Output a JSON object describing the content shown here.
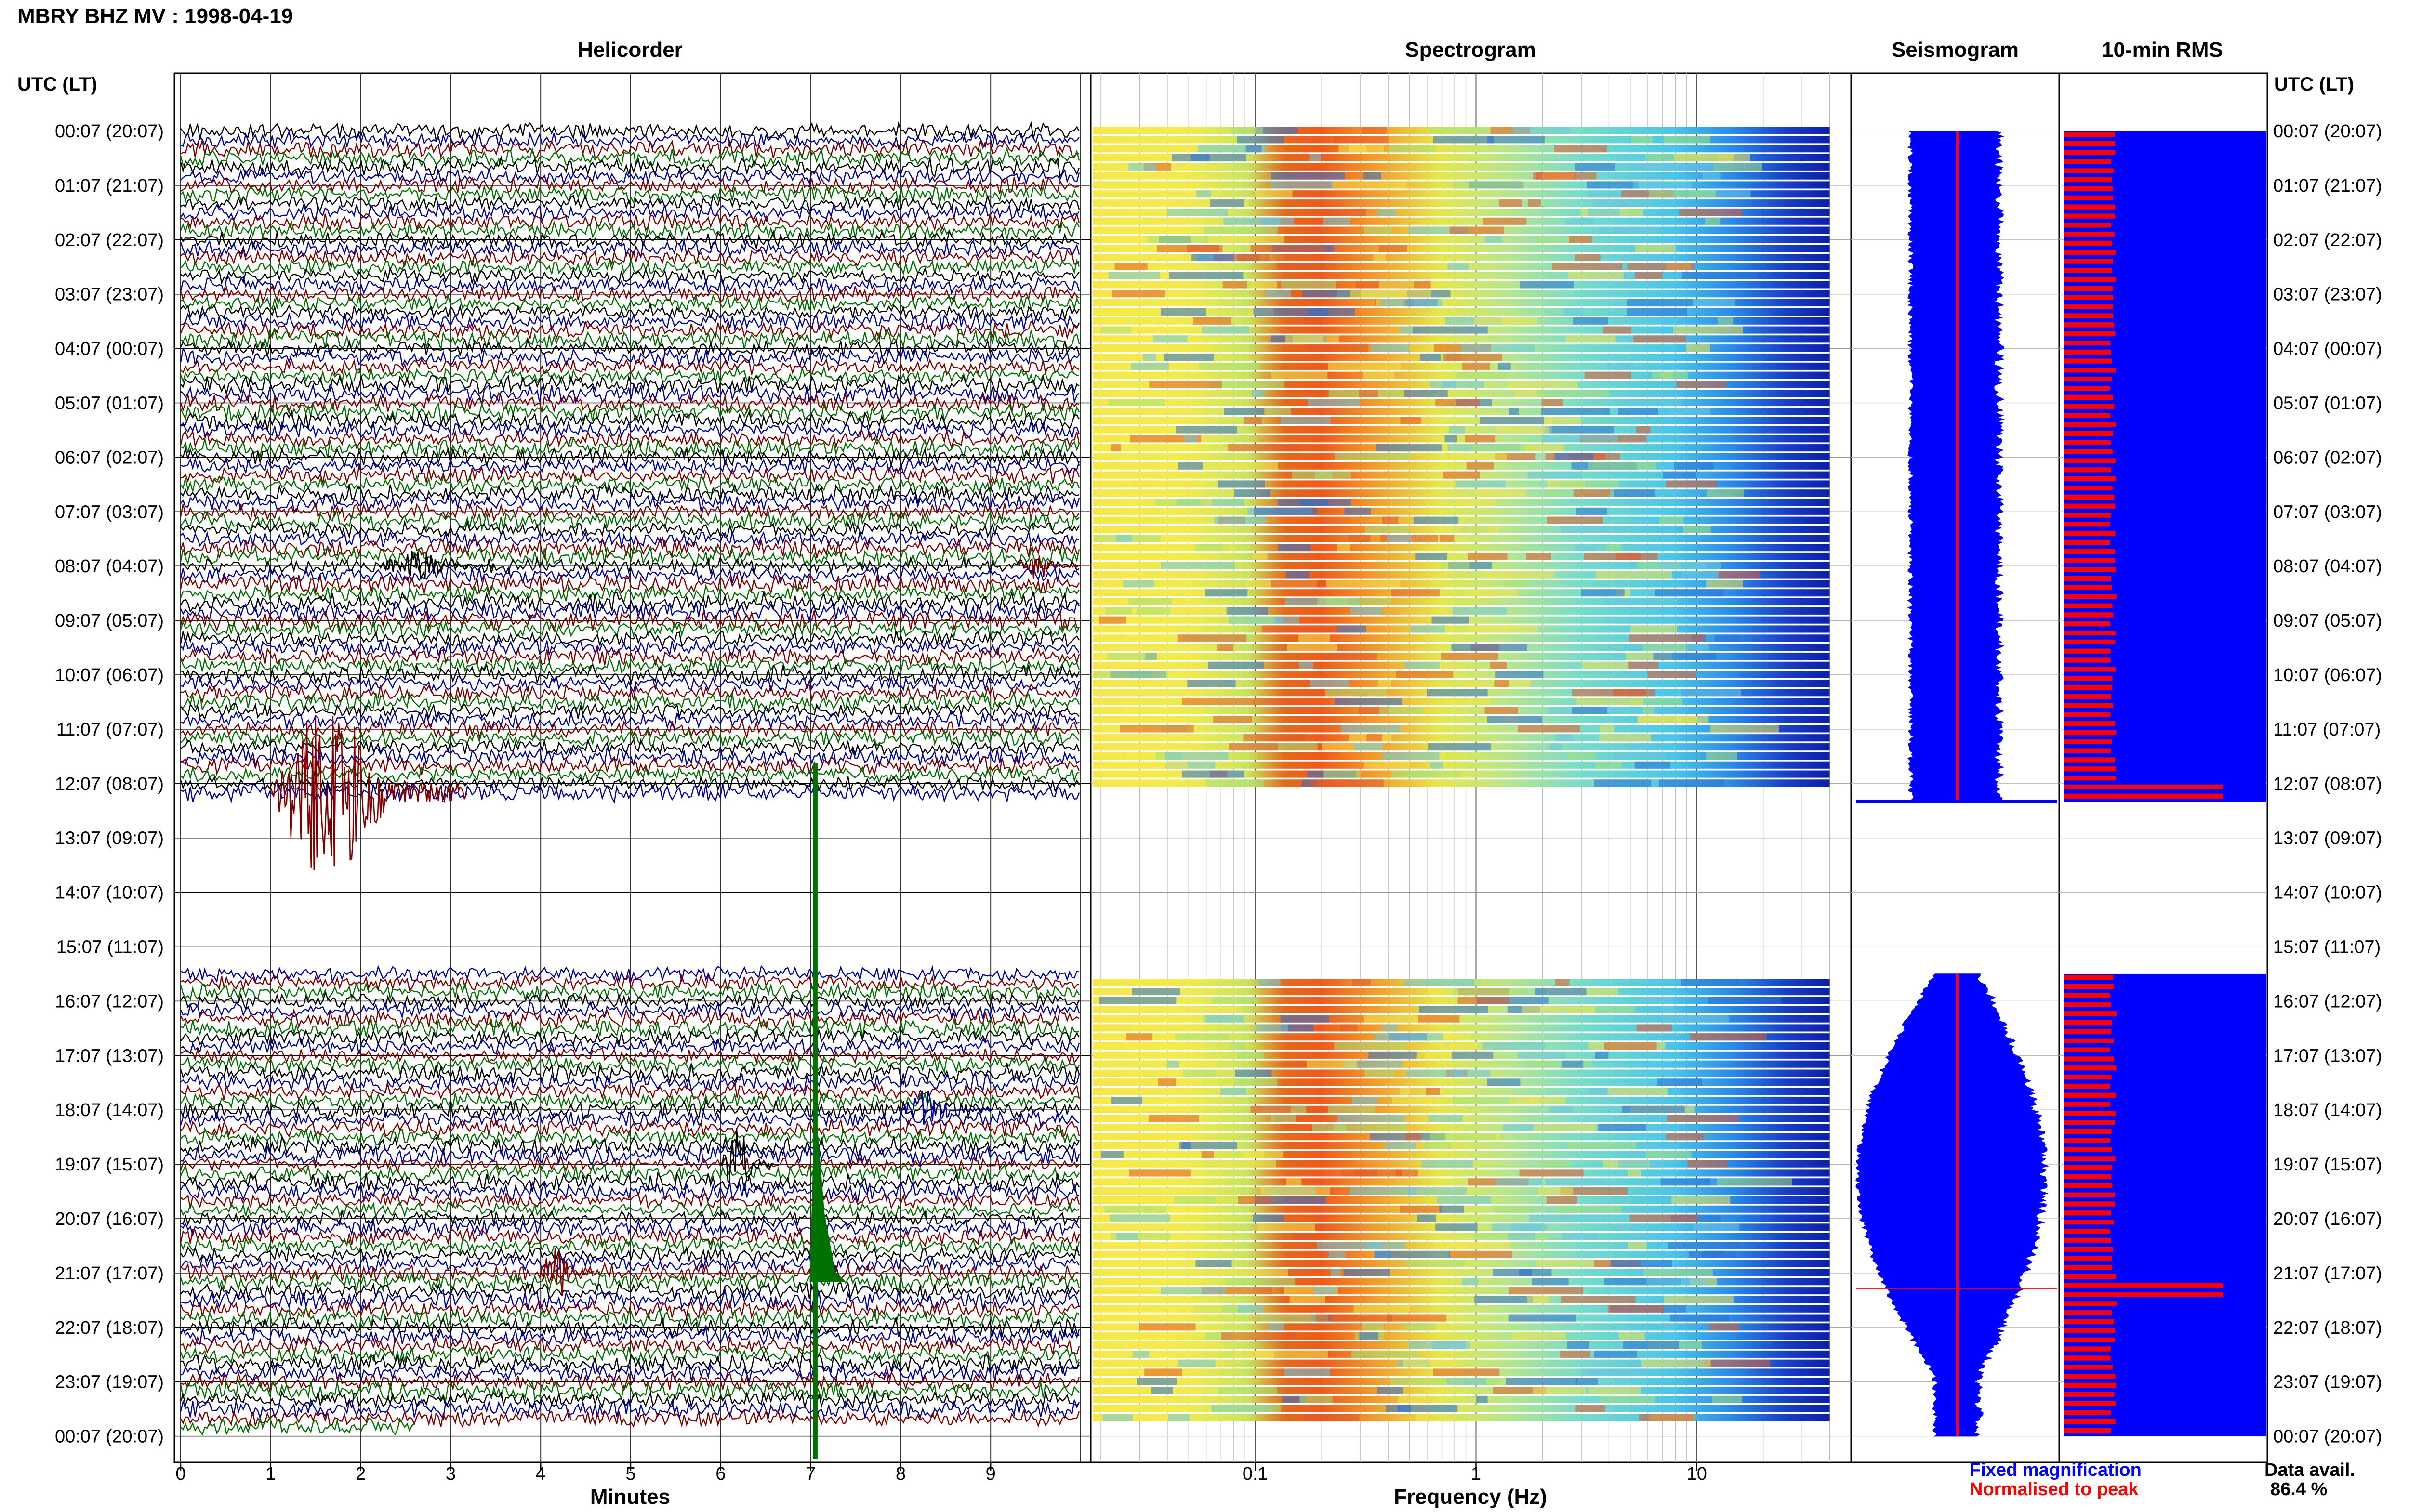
{
  "station_title": "MBRY BHZ MV : 1998-04-19",
  "time_axis_label": "UTC (LT)",
  "panels": {
    "helicorder": "Helicorder",
    "spectrogram": "Spectrogram",
    "seismogram": "Seismogram",
    "rms": "10-min RMS"
  },
  "row_labels": [
    "00:07 (20:07)",
    "01:07 (21:07)",
    "02:07 (22:07)",
    "03:07 (23:07)",
    "04:07 (00:07)",
    "05:07 (01:07)",
    "06:07 (02:07)",
    "07:07 (03:07)",
    "08:07 (04:07)",
    "09:07 (05:07)",
    "10:07 (06:07)",
    "11:07 (07:07)",
    "12:07 (08:07)",
    "13:07 (09:07)",
    "14:07 (10:07)",
    "15:07 (11:07)",
    "16:07 (12:07)",
    "17:07 (13:07)",
    "18:07 (14:07)",
    "19:07 (15:07)",
    "20:07 (16:07)",
    "21:07 (17:07)",
    "22:07 (18:07)",
    "23:07 (19:07)",
    "00:07 (20:07)"
  ],
  "helicorder_xaxis": {
    "label": "Minutes",
    "ticks": [
      "0",
      "1",
      "2",
      "3",
      "4",
      "5",
      "6",
      "7",
      "8",
      "9"
    ]
  },
  "spectrogram_xaxis": {
    "label": "Frequency (Hz)",
    "scale": "log",
    "ticks": [
      "0.1",
      "1",
      "10"
    ]
  },
  "legend": {
    "fixed": "Fixed magnification",
    "normalised": "Normalised to peak",
    "fixed_color": "#0000ff",
    "normalised_color": "#ff0000"
  },
  "data_avail": {
    "label": "Data avail.",
    "value": "86.4 %"
  },
  "trace_colors": [
    "#000000",
    "#0000a0",
    "#800000",
    "#007000"
  ],
  "chart_data": {
    "type": "helicorder",
    "date": "1998-04-19",
    "minutes_per_line": 10,
    "gap_utc": [
      "12:20",
      "15:30"
    ],
    "notable_events_utc": [
      {
        "time": "08:02",
        "description": "emergent event"
      },
      {
        "time": "08:09",
        "description": "emergent event"
      },
      {
        "time": "12:11",
        "description": "large event"
      },
      {
        "time": "18:08",
        "description": "long-period signal"
      },
      {
        "time": "19:06",
        "description": "event"
      },
      {
        "time": "20:47",
        "description": "large spike"
      },
      {
        "time": "21:04",
        "description": "event"
      }
    ],
    "rms_peaks_utc": [
      "12:07",
      "21:17"
    ],
    "data_availability_percent": 86.4
  }
}
